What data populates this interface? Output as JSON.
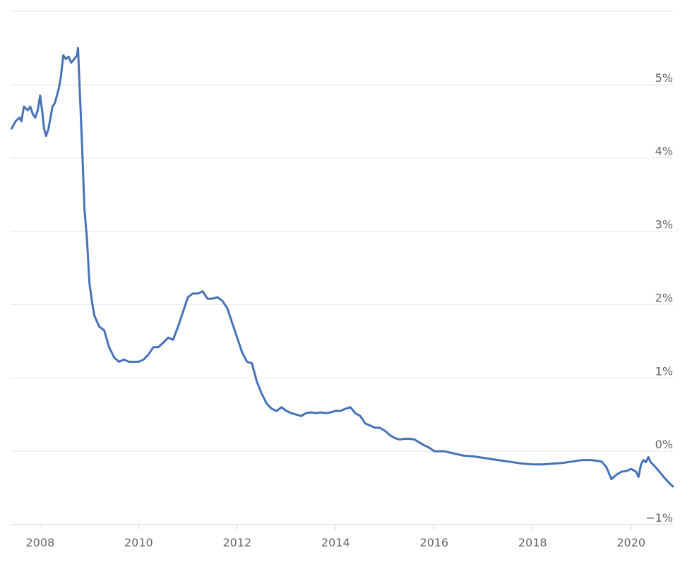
{
  "chart_data": {
    "type": "line",
    "title": "",
    "xlabel": "",
    "ylabel": "",
    "xlim": [
      2007.4,
      2020.85
    ],
    "ylim": [
      -1,
      6
    ],
    "y_ticks": [
      {
        "value": 5,
        "label": "5%"
      },
      {
        "value": 4,
        "label": "4%"
      },
      {
        "value": 3,
        "label": "3%"
      },
      {
        "value": 2,
        "label": "2%"
      },
      {
        "value": 1,
        "label": "1%"
      },
      {
        "value": 0,
        "label": "0%"
      },
      {
        "value": -1,
        "label": "−1%"
      }
    ],
    "x_ticks": [
      {
        "value": 2008,
        "label": "2008"
      },
      {
        "value": 2010,
        "label": "2010"
      },
      {
        "value": 2012,
        "label": "2012"
      },
      {
        "value": 2014,
        "label": "2014"
      },
      {
        "value": 2016,
        "label": "2016"
      },
      {
        "value": 2018,
        "label": "2018"
      },
      {
        "value": 2020,
        "label": "2020"
      }
    ],
    "grid": true,
    "y_axis_side": "right",
    "legend": "none",
    "colors": {
      "line": "#4572b8"
    },
    "series": [
      {
        "x": [
          2007.42,
          2007.5,
          2007.58,
          2007.62,
          2007.67,
          2007.75,
          2007.8,
          2007.85,
          2007.9,
          2007.95,
          2008.0,
          2008.04,
          2008.08,
          2008.12,
          2008.17,
          2008.25,
          2008.3,
          2008.38,
          2008.42,
          2008.47,
          2008.52,
          2008.58,
          2008.63,
          2008.67,
          2008.75,
          2008.77,
          2008.8,
          2008.85,
          2008.9,
          2008.95,
          2009.0,
          2009.05,
          2009.1,
          2009.2,
          2009.3,
          2009.4,
          2009.45,
          2009.5,
          2009.6,
          2009.7,
          2009.8,
          2009.9,
          2010.0,
          2010.1,
          2010.2,
          2010.3,
          2010.4,
          2010.5,
          2010.6,
          2010.7,
          2010.8,
          2010.9,
          2011.0,
          2011.1,
          2011.2,
          2011.3,
          2011.4,
          2011.5,
          2011.6,
          2011.7,
          2011.8,
          2011.9,
          2012.0,
          2012.1,
          2012.2,
          2012.3,
          2012.4,
          2012.5,
          2012.6,
          2012.7,
          2012.8,
          2012.9,
          2013.0,
          2013.1,
          2013.2,
          2013.3,
          2013.4,
          2013.5,
          2013.6,
          2013.7,
          2013.8,
          2013.9,
          2014.0,
          2014.1,
          2014.2,
          2014.3,
          2014.4,
          2014.5,
          2014.6,
          2014.7,
          2014.8,
          2014.9,
          2015.0,
          2015.1,
          2015.2,
          2015.3,
          2015.4,
          2015.5,
          2015.6,
          2015.7,
          2015.8,
          2015.9,
          2016.0,
          2016.2,
          2016.4,
          2016.6,
          2016.8,
          2017.0,
          2017.2,
          2017.4,
          2017.6,
          2017.8,
          2018.0,
          2018.2,
          2018.4,
          2018.6,
          2018.8,
          2019.0,
          2019.2,
          2019.4,
          2019.5,
          2019.6,
          2019.7,
          2019.8,
          2019.9,
          2020.0,
          2020.1,
          2020.15,
          2020.2,
          2020.25,
          2020.3,
          2020.35,
          2020.4,
          2020.5,
          2020.6,
          2020.7,
          2020.8,
          2020.85
        ],
        "values": [
          4.4,
          4.5,
          4.55,
          4.5,
          4.7,
          4.65,
          4.7,
          4.6,
          4.55,
          4.65,
          4.85,
          4.65,
          4.4,
          4.3,
          4.4,
          4.7,
          4.75,
          4.95,
          5.1,
          5.4,
          5.35,
          5.38,
          5.3,
          5.33,
          5.4,
          5.5,
          5.0,
          4.2,
          3.3,
          2.9,
          2.3,
          2.05,
          1.85,
          1.7,
          1.65,
          1.42,
          1.35,
          1.28,
          1.22,
          1.25,
          1.22,
          1.22,
          1.22,
          1.25,
          1.32,
          1.42,
          1.42,
          1.48,
          1.55,
          1.52,
          1.7,
          1.9,
          2.1,
          2.15,
          2.15,
          2.18,
          2.08,
          2.08,
          2.1,
          2.05,
          1.95,
          1.75,
          1.55,
          1.35,
          1.22,
          1.2,
          0.95,
          0.78,
          0.65,
          0.58,
          0.55,
          0.6,
          0.55,
          0.52,
          0.5,
          0.48,
          0.52,
          0.53,
          0.52,
          0.53,
          0.52,
          0.53,
          0.55,
          0.55,
          0.58,
          0.6,
          0.52,
          0.48,
          0.38,
          0.35,
          0.32,
          0.32,
          0.28,
          0.22,
          0.18,
          0.16,
          0.17,
          0.17,
          0.16,
          0.12,
          0.08,
          0.05,
          0.0,
          0.0,
          -0.03,
          -0.06,
          -0.07,
          -0.09,
          -0.11,
          -0.13,
          -0.15,
          -0.17,
          -0.18,
          -0.18,
          -0.17,
          -0.16,
          -0.14,
          -0.12,
          -0.12,
          -0.14,
          -0.22,
          -0.38,
          -0.32,
          -0.28,
          -0.27,
          -0.24,
          -0.28,
          -0.35,
          -0.18,
          -0.12,
          -0.15,
          -0.08,
          -0.15,
          -0.22,
          -0.3,
          -0.38,
          -0.45,
          -0.48
        ]
      }
    ]
  }
}
